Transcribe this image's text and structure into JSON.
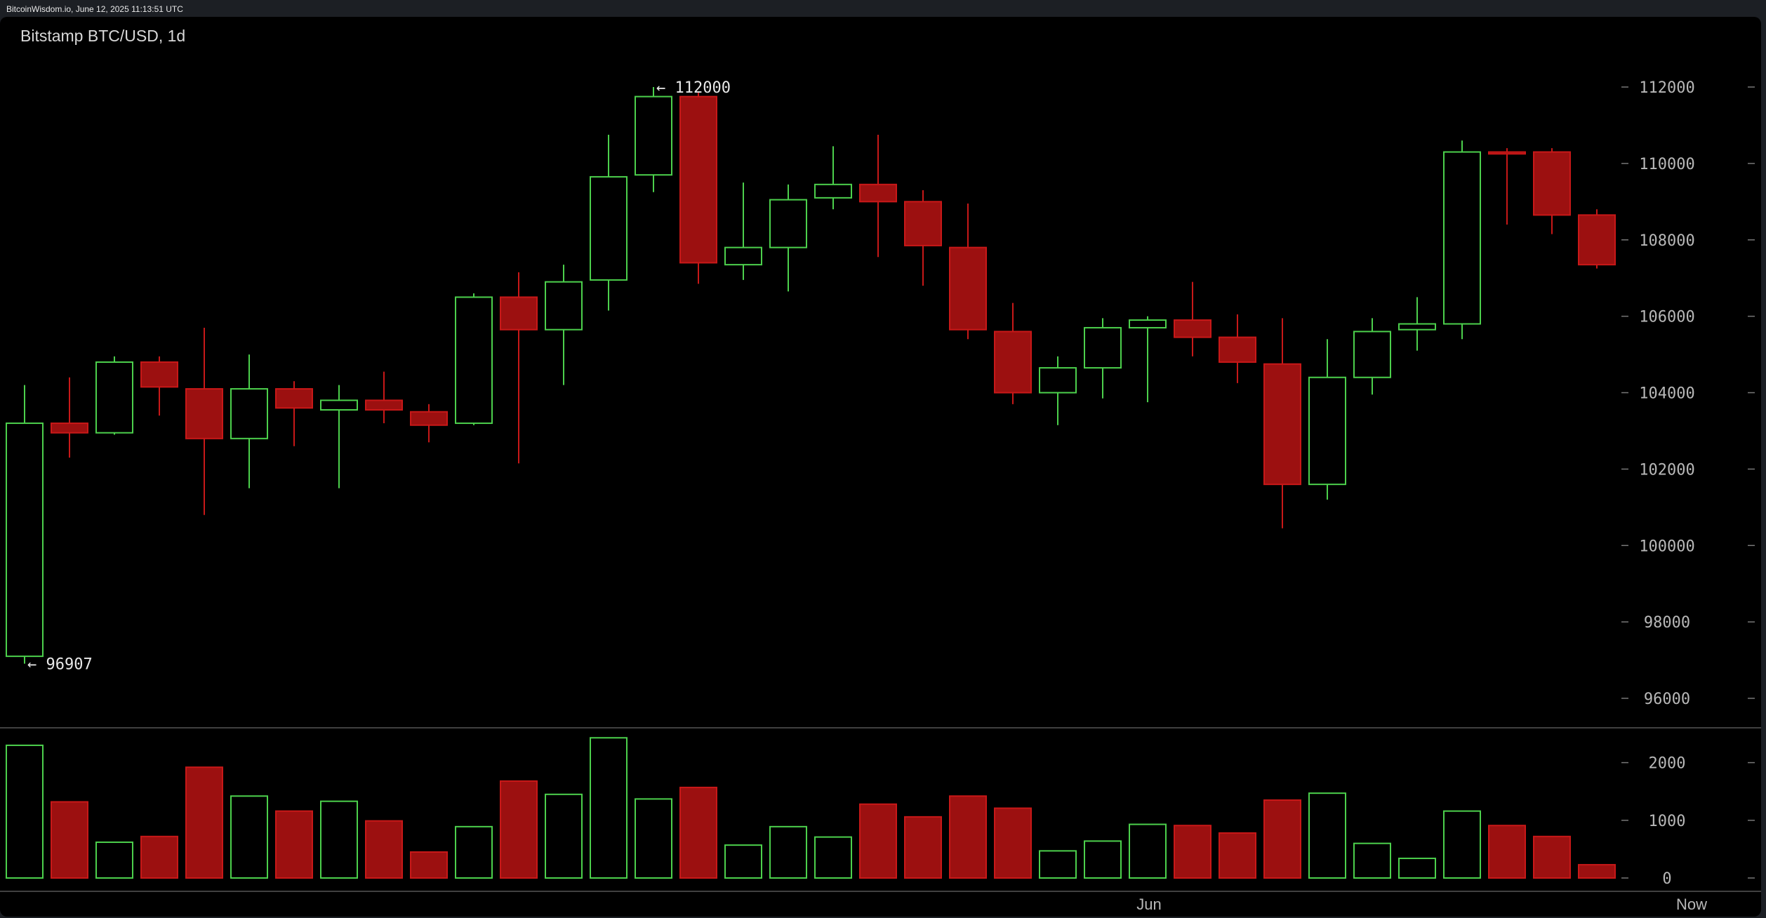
{
  "header": {
    "text": "BitcoinWisdom.io, June 12, 2025 11:13:51 UTC"
  },
  "colors": {
    "up": "#4cd04c",
    "down": "#9c1010",
    "down_edge": "#c81818",
    "axis_text": "#b8b8b8",
    "separator": "#555555"
  },
  "chart_data": {
    "type": "candlestick",
    "title": "Bitstamp BTC/USD, 1d",
    "price_ylim": [
      95000,
      113500
    ],
    "price_ticks": [
      96000,
      98000,
      100000,
      102000,
      104000,
      106000,
      108000,
      110000,
      112000
    ],
    "volume_ylim": [
      0,
      2550
    ],
    "volume_ticks": [
      0,
      1000,
      2000
    ],
    "x_labels": [
      {
        "index": 25,
        "label": "Jun"
      },
      {
        "index": 37,
        "label": "Now"
      }
    ],
    "annotations": [
      {
        "index": 14,
        "price": 112000,
        "text": "← 112000"
      },
      {
        "index": 0,
        "price": 96907,
        "text": "← 96907"
      }
    ],
    "candles": [
      {
        "o": 97100,
        "h": 104200,
        "l": 96907,
        "c": 103200,
        "v": 2300
      },
      {
        "o": 103200,
        "h": 104400,
        "l": 102300,
        "c": 102950,
        "v": 1320
      },
      {
        "o": 102950,
        "h": 104950,
        "l": 102900,
        "c": 104800,
        "v": 620
      },
      {
        "o": 104800,
        "h": 104950,
        "l": 103400,
        "c": 104150,
        "v": 720
      },
      {
        "o": 104100,
        "h": 105700,
        "l": 100800,
        "c": 102800,
        "v": 1920
      },
      {
        "o": 102800,
        "h": 105000,
        "l": 101500,
        "c": 104100,
        "v": 1420
      },
      {
        "o": 104100,
        "h": 104300,
        "l": 102600,
        "c": 103600,
        "v": 1160
      },
      {
        "o": 103550,
        "h": 104200,
        "l": 101500,
        "c": 103800,
        "v": 1330
      },
      {
        "o": 103800,
        "h": 104550,
        "l": 103200,
        "c": 103550,
        "v": 990
      },
      {
        "o": 103500,
        "h": 103700,
        "l": 102700,
        "c": 103150,
        "v": 450
      },
      {
        "o": 103200,
        "h": 106600,
        "l": 103150,
        "c": 106500,
        "v": 890
      },
      {
        "o": 106500,
        "h": 107150,
        "l": 102150,
        "c": 105650,
        "v": 1680
      },
      {
        "o": 105650,
        "h": 107350,
        "l": 104200,
        "c": 106900,
        "v": 1450
      },
      {
        "o": 106950,
        "h": 110750,
        "l": 106150,
        "c": 109650,
        "v": 2430
      },
      {
        "o": 109700,
        "h": 112000,
        "l": 109250,
        "c": 111750,
        "v": 1370
      },
      {
        "o": 111750,
        "h": 111850,
        "l": 106850,
        "c": 107400,
        "v": 1570
      },
      {
        "o": 107350,
        "h": 109500,
        "l": 106950,
        "c": 107800,
        "v": 570
      },
      {
        "o": 107800,
        "h": 109450,
        "l": 106650,
        "c": 109050,
        "v": 890
      },
      {
        "o": 109100,
        "h": 110450,
        "l": 108800,
        "c": 109450,
        "v": 710
      },
      {
        "o": 109450,
        "h": 110750,
        "l": 107550,
        "c": 109000,
        "v": 1280
      },
      {
        "o": 109000,
        "h": 109300,
        "l": 106800,
        "c": 107850,
        "v": 1060
      },
      {
        "o": 107800,
        "h": 108950,
        "l": 105400,
        "c": 105650,
        "v": 1420
      },
      {
        "o": 105600,
        "h": 106350,
        "l": 103700,
        "c": 104000,
        "v": 1210
      },
      {
        "o": 104000,
        "h": 104950,
        "l": 103150,
        "c": 104650,
        "v": 470
      },
      {
        "o": 104650,
        "h": 105950,
        "l": 103850,
        "c": 105700,
        "v": 640
      },
      {
        "o": 105700,
        "h": 106000,
        "l": 103750,
        "c": 105900,
        "v": 930
      },
      {
        "o": 105900,
        "h": 106900,
        "l": 104950,
        "c": 105450,
        "v": 910
      },
      {
        "o": 105450,
        "h": 106050,
        "l": 104250,
        "c": 104800,
        "v": 780
      },
      {
        "o": 104750,
        "h": 105950,
        "l": 100450,
        "c": 101600,
        "v": 1350
      },
      {
        "o": 101600,
        "h": 105400,
        "l": 101200,
        "c": 104400,
        "v": 1470
      },
      {
        "o": 104400,
        "h": 105950,
        "l": 103950,
        "c": 105600,
        "v": 600
      },
      {
        "o": 105650,
        "h": 106500,
        "l": 105100,
        "c": 105800,
        "v": 340
      },
      {
        "o": 105800,
        "h": 110600,
        "l": 105400,
        "c": 110300,
        "v": 1160
      },
      {
        "o": 110300,
        "h": 110400,
        "l": 108400,
        "c": 110250,
        "v": 910
      },
      {
        "o": 110300,
        "h": 110400,
        "l": 108150,
        "c": 108650,
        "v": 720
      },
      {
        "o": 108650,
        "h": 108800,
        "l": 107250,
        "c": 107350,
        "v": 230
      }
    ]
  }
}
